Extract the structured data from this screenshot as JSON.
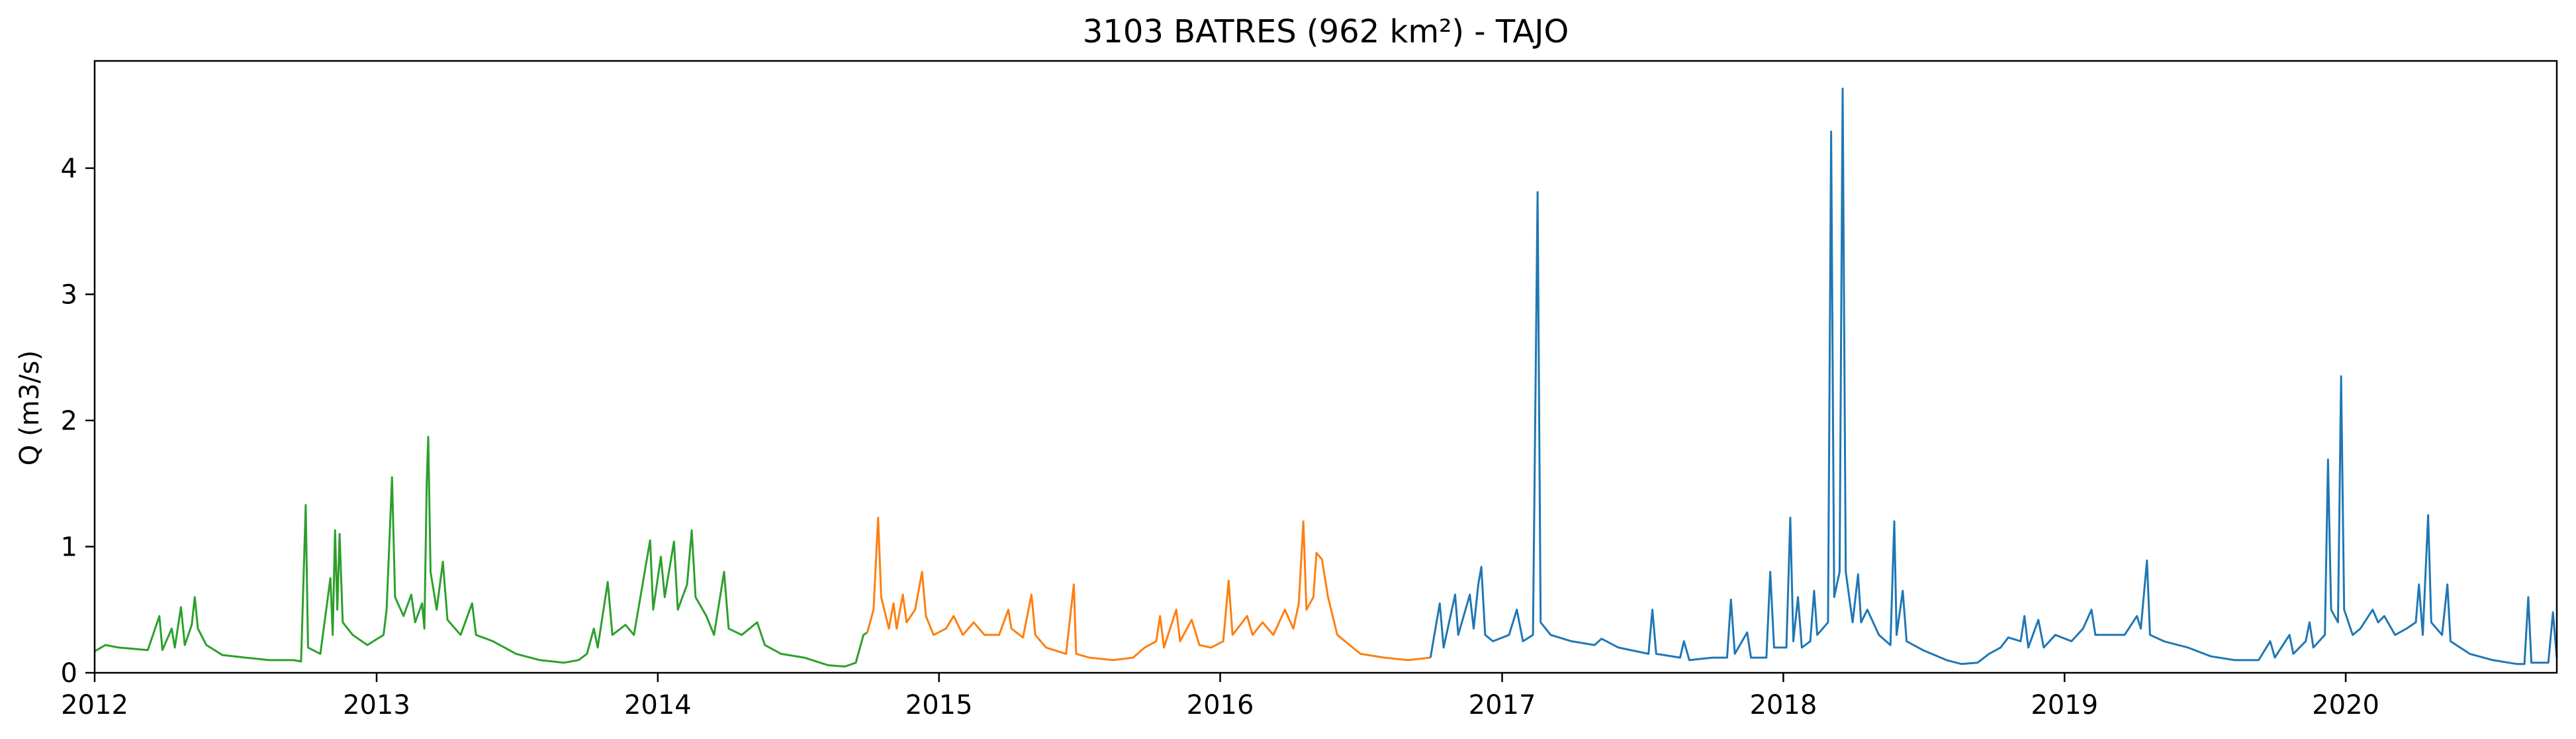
{
  "chart_data": {
    "type": "line",
    "title": "3103 BATRES (962 km²) - TAJO",
    "xlabel": "",
    "ylabel": "Q (m3/s)",
    "xlim": [
      "2012-01-01",
      "2020-10-01"
    ],
    "ylim": [
      0,
      4.85
    ],
    "grid": false,
    "x_ticks": [
      "2012",
      "2013",
      "2014",
      "2015",
      "2016",
      "2017",
      "2018",
      "2019",
      "2020"
    ],
    "y_ticks": [
      "0",
      "1",
      "2",
      "3",
      "4"
    ],
    "series": [
      {
        "color": "#2ca02c",
        "points": [
          [
            "2012-01-01",
            0.17
          ],
          [
            "2012-01-15",
            0.22
          ],
          [
            "2012-02-01",
            0.2
          ],
          [
            "2012-02-20",
            0.19
          ],
          [
            "2012-03-10",
            0.18
          ],
          [
            "2012-03-25",
            0.45
          ],
          [
            "2012-03-29",
            0.18
          ],
          [
            "2012-04-10",
            0.35
          ],
          [
            "2012-04-14",
            0.2
          ],
          [
            "2012-04-22",
            0.52
          ],
          [
            "2012-04-27",
            0.22
          ],
          [
            "2012-05-06",
            0.38
          ],
          [
            "2012-05-10",
            0.6
          ],
          [
            "2012-05-14",
            0.35
          ],
          [
            "2012-05-25",
            0.22
          ],
          [
            "2012-06-15",
            0.14
          ],
          [
            "2012-07-15",
            0.12
          ],
          [
            "2012-08-15",
            0.1
          ],
          [
            "2012-09-15",
            0.1
          ],
          [
            "2012-09-25",
            0.09
          ],
          [
            "2012-10-01",
            1.33
          ],
          [
            "2012-10-04",
            0.2
          ],
          [
            "2012-10-20",
            0.15
          ],
          [
            "2012-11-02",
            0.75
          ],
          [
            "2012-11-05",
            0.3
          ],
          [
            "2012-11-08",
            1.13
          ],
          [
            "2012-11-11",
            0.5
          ],
          [
            "2012-11-14",
            1.1
          ],
          [
            "2012-11-18",
            0.4
          ],
          [
            "2012-12-01",
            0.3
          ],
          [
            "2012-12-20",
            0.22
          ],
          [
            "2013-01-10",
            0.3
          ],
          [
            "2013-01-14",
            0.5
          ],
          [
            "2013-01-21",
            1.55
          ],
          [
            "2013-01-25",
            0.6
          ],
          [
            "2013-02-05",
            0.45
          ],
          [
            "2013-02-15",
            0.62
          ],
          [
            "2013-02-20",
            0.4
          ],
          [
            "2013-03-01",
            0.55
          ],
          [
            "2013-03-04",
            0.35
          ],
          [
            "2013-03-07",
            1.5
          ],
          [
            "2013-03-09",
            1.87
          ],
          [
            "2013-03-12",
            0.8
          ],
          [
            "2013-03-20",
            0.5
          ],
          [
            "2013-03-28",
            0.88
          ],
          [
            "2013-04-03",
            0.42
          ],
          [
            "2013-04-20",
            0.3
          ],
          [
            "2013-05-05",
            0.55
          ],
          [
            "2013-05-10",
            0.3
          ],
          [
            "2013-06-01",
            0.25
          ],
          [
            "2013-07-01",
            0.15
          ],
          [
            "2013-08-01",
            0.1
          ],
          [
            "2013-09-01",
            0.08
          ],
          [
            "2013-09-20",
            0.1
          ],
          [
            "2013-10-01",
            0.15
          ],
          [
            "2013-10-10",
            0.35
          ],
          [
            "2013-10-15",
            0.2
          ],
          [
            "2013-10-28",
            0.72
          ],
          [
            "2013-11-03",
            0.3
          ],
          [
            "2013-11-20",
            0.38
          ],
          [
            "2013-12-01",
            0.3
          ],
          [
            "2013-12-22",
            1.05
          ],
          [
            "2013-12-26",
            0.5
          ],
          [
            "2014-01-05",
            0.92
          ],
          [
            "2014-01-10",
            0.6
          ],
          [
            "2014-01-22",
            1.04
          ],
          [
            "2014-01-27",
            0.5
          ],
          [
            "2014-02-08",
            0.7
          ],
          [
            "2014-02-14",
            1.13
          ],
          [
            "2014-02-19",
            0.6
          ],
          [
            "2014-03-05",
            0.45
          ],
          [
            "2014-03-15",
            0.3
          ],
          [
            "2014-03-28",
            0.8
          ],
          [
            "2014-04-03",
            0.35
          ],
          [
            "2014-04-20",
            0.3
          ],
          [
            "2014-05-10",
            0.4
          ],
          [
            "2014-05-20",
            0.22
          ],
          [
            "2014-06-10",
            0.15
          ],
          [
            "2014-07-10",
            0.12
          ],
          [
            "2014-08-10",
            0.06
          ],
          [
            "2014-09-01",
            0.05
          ],
          [
            "2014-09-15",
            0.08
          ],
          [
            "2014-09-25",
            0.3
          ],
          [
            "2014-09-30",
            0.32
          ]
        ]
      },
      {
        "color": "#ff7f0e",
        "points": [
          [
            "2014-09-30",
            0.32
          ],
          [
            "2014-10-08",
            0.5
          ],
          [
            "2014-10-14",
            1.23
          ],
          [
            "2014-10-18",
            0.6
          ],
          [
            "2014-10-28",
            0.35
          ],
          [
            "2014-11-03",
            0.55
          ],
          [
            "2014-11-07",
            0.35
          ],
          [
            "2014-11-15",
            0.62
          ],
          [
            "2014-11-20",
            0.4
          ],
          [
            "2014-12-01",
            0.5
          ],
          [
            "2014-12-10",
            0.8
          ],
          [
            "2014-12-15",
            0.45
          ],
          [
            "2014-12-25",
            0.3
          ],
          [
            "2015-01-10",
            0.35
          ],
          [
            "2015-01-20",
            0.45
          ],
          [
            "2015-02-01",
            0.3
          ],
          [
            "2015-02-15",
            0.4
          ],
          [
            "2015-03-01",
            0.3
          ],
          [
            "2015-03-20",
            0.3
          ],
          [
            "2015-04-01",
            0.5
          ],
          [
            "2015-04-05",
            0.35
          ],
          [
            "2015-04-20",
            0.28
          ],
          [
            "2015-05-01",
            0.62
          ],
          [
            "2015-05-06",
            0.3
          ],
          [
            "2015-05-20",
            0.2
          ],
          [
            "2015-06-15",
            0.15
          ],
          [
            "2015-06-25",
            0.7
          ],
          [
            "2015-06-28",
            0.15
          ],
          [
            "2015-07-15",
            0.12
          ],
          [
            "2015-08-15",
            0.1
          ],
          [
            "2015-09-10",
            0.12
          ],
          [
            "2015-09-25",
            0.2
          ],
          [
            "2015-10-10",
            0.25
          ],
          [
            "2015-10-15",
            0.45
          ],
          [
            "2015-10-20",
            0.2
          ],
          [
            "2015-11-05",
            0.5
          ],
          [
            "2015-11-10",
            0.25
          ],
          [
            "2015-11-25",
            0.42
          ],
          [
            "2015-12-05",
            0.22
          ],
          [
            "2015-12-20",
            0.2
          ],
          [
            "2016-01-05",
            0.25
          ],
          [
            "2016-01-12",
            0.73
          ],
          [
            "2016-01-17",
            0.3
          ],
          [
            "2016-02-05",
            0.45
          ],
          [
            "2016-02-12",
            0.3
          ],
          [
            "2016-02-25",
            0.4
          ],
          [
            "2016-03-10",
            0.3
          ],
          [
            "2016-03-25",
            0.5
          ],
          [
            "2016-04-05",
            0.35
          ],
          [
            "2016-04-12",
            0.55
          ],
          [
            "2016-04-18",
            1.2
          ],
          [
            "2016-04-22",
            0.5
          ],
          [
            "2016-05-01",
            0.6
          ],
          [
            "2016-05-05",
            0.95
          ],
          [
            "2016-05-12",
            0.9
          ],
          [
            "2016-05-20",
            0.6
          ],
          [
            "2016-06-01",
            0.3
          ],
          [
            "2016-07-01",
            0.15
          ],
          [
            "2016-08-01",
            0.12
          ],
          [
            "2016-09-01",
            0.1
          ],
          [
            "2016-09-30",
            0.12
          ]
        ]
      },
      {
        "color": "#1f77b4",
        "points": [
          [
            "2016-09-30",
            0.12
          ],
          [
            "2016-10-05",
            0.3
          ],
          [
            "2016-10-12",
            0.55
          ],
          [
            "2016-10-17",
            0.2
          ],
          [
            "2016-11-01",
            0.62
          ],
          [
            "2016-11-05",
            0.3
          ],
          [
            "2016-11-20",
            0.62
          ],
          [
            "2016-11-25",
            0.35
          ],
          [
            "2016-12-01",
            0.7
          ],
          [
            "2016-12-05",
            0.84
          ],
          [
            "2016-12-10",
            0.3
          ],
          [
            "2016-12-20",
            0.25
          ],
          [
            "2017-01-10",
            0.3
          ],
          [
            "2017-01-20",
            0.5
          ],
          [
            "2017-01-28",
            0.25
          ],
          [
            "2017-02-10",
            0.3
          ],
          [
            "2017-02-16",
            3.81
          ],
          [
            "2017-02-20",
            0.4
          ],
          [
            "2017-03-05",
            0.3
          ],
          [
            "2017-04-01",
            0.25
          ],
          [
            "2017-05-01",
            0.22
          ],
          [
            "2017-05-10",
            0.27
          ],
          [
            "2017-06-01",
            0.2
          ],
          [
            "2017-07-10",
            0.15
          ],
          [
            "2017-07-15",
            0.5
          ],
          [
            "2017-07-20",
            0.15
          ],
          [
            "2017-08-20",
            0.12
          ],
          [
            "2017-08-25",
            0.25
          ],
          [
            "2017-09-01",
            0.1
          ],
          [
            "2017-10-01",
            0.12
          ],
          [
            "2017-10-20",
            0.12
          ],
          [
            "2017-10-25",
            0.58
          ],
          [
            "2017-10-30",
            0.15
          ],
          [
            "2017-11-15",
            0.32
          ],
          [
            "2017-11-20",
            0.12
          ],
          [
            "2017-12-10",
            0.12
          ],
          [
            "2017-12-15",
            0.8
          ],
          [
            "2017-12-20",
            0.2
          ],
          [
            "2018-01-05",
            0.2
          ],
          [
            "2018-01-10",
            1.23
          ],
          [
            "2018-01-14",
            0.25
          ],
          [
            "2018-01-20",
            0.6
          ],
          [
            "2018-01-25",
            0.2
          ],
          [
            "2018-02-05",
            0.25
          ],
          [
            "2018-02-10",
            0.65
          ],
          [
            "2018-02-14",
            0.3
          ],
          [
            "2018-02-28",
            0.4
          ],
          [
            "2018-03-04",
            4.29
          ],
          [
            "2018-03-08",
            0.6
          ],
          [
            "2018-03-15",
            0.8
          ],
          [
            "2018-03-19",
            4.63
          ],
          [
            "2018-03-23",
            0.8
          ],
          [
            "2018-04-01",
            0.4
          ],
          [
            "2018-04-08",
            0.78
          ],
          [
            "2018-04-12",
            0.4
          ],
          [
            "2018-04-20",
            0.5
          ],
          [
            "2018-05-05",
            0.3
          ],
          [
            "2018-05-20",
            0.22
          ],
          [
            "2018-05-25",
            1.2
          ],
          [
            "2018-05-28",
            0.3
          ],
          [
            "2018-06-05",
            0.65
          ],
          [
            "2018-06-10",
            0.25
          ],
          [
            "2018-07-01",
            0.18
          ],
          [
            "2018-08-01",
            0.1
          ],
          [
            "2018-08-20",
            0.07
          ],
          [
            "2018-09-10",
            0.08
          ],
          [
            "2018-09-25",
            0.15
          ],
          [
            "2018-10-10",
            0.2
          ],
          [
            "2018-10-20",
            0.28
          ],
          [
            "2018-11-05",
            0.25
          ],
          [
            "2018-11-10",
            0.45
          ],
          [
            "2018-11-15",
            0.2
          ],
          [
            "2018-11-28",
            0.42
          ],
          [
            "2018-12-05",
            0.2
          ],
          [
            "2018-12-20",
            0.3
          ],
          [
            "2019-01-10",
            0.25
          ],
          [
            "2019-01-25",
            0.35
          ],
          [
            "2019-02-05",
            0.5
          ],
          [
            "2019-02-10",
            0.3
          ],
          [
            "2019-03-01",
            0.3
          ],
          [
            "2019-03-20",
            0.3
          ],
          [
            "2019-04-05",
            0.45
          ],
          [
            "2019-04-10",
            0.35
          ],
          [
            "2019-04-18",
            0.89
          ],
          [
            "2019-04-22",
            0.3
          ],
          [
            "2019-05-10",
            0.25
          ],
          [
            "2019-06-10",
            0.2
          ],
          [
            "2019-07-10",
            0.13
          ],
          [
            "2019-08-10",
            0.1
          ],
          [
            "2019-09-10",
            0.1
          ],
          [
            "2019-09-25",
            0.25
          ],
          [
            "2019-10-01",
            0.12
          ],
          [
            "2019-10-20",
            0.3
          ],
          [
            "2019-10-25",
            0.15
          ],
          [
            "2019-11-10",
            0.25
          ],
          [
            "2019-11-15",
            0.4
          ],
          [
            "2019-11-20",
            0.2
          ],
          [
            "2019-12-05",
            0.3
          ],
          [
            "2019-12-09",
            1.69
          ],
          [
            "2019-12-13",
            0.5
          ],
          [
            "2019-12-22",
            0.4
          ],
          [
            "2019-12-26",
            2.35
          ],
          [
            "2019-12-30",
            0.5
          ],
          [
            "2020-01-10",
            0.3
          ],
          [
            "2020-01-20",
            0.35
          ],
          [
            "2020-02-05",
            0.5
          ],
          [
            "2020-02-12",
            0.4
          ],
          [
            "2020-02-20",
            0.45
          ],
          [
            "2020-03-05",
            0.3
          ],
          [
            "2020-03-20",
            0.35
          ],
          [
            "2020-04-01",
            0.4
          ],
          [
            "2020-04-05",
            0.7
          ],
          [
            "2020-04-10",
            0.3
          ],
          [
            "2020-04-17",
            1.25
          ],
          [
            "2020-04-21",
            0.4
          ],
          [
            "2020-05-05",
            0.3
          ],
          [
            "2020-05-12",
            0.7
          ],
          [
            "2020-05-16",
            0.25
          ],
          [
            "2020-06-10",
            0.15
          ],
          [
            "2020-07-10",
            0.1
          ],
          [
            "2020-08-10",
            0.07
          ],
          [
            "2020-08-20",
            0.07
          ],
          [
            "2020-08-25",
            0.6
          ],
          [
            "2020-08-29",
            0.08
          ],
          [
            "2020-09-20",
            0.08
          ],
          [
            "2020-09-26",
            0.48
          ],
          [
            "2020-10-01",
            0.12
          ]
        ]
      }
    ]
  }
}
